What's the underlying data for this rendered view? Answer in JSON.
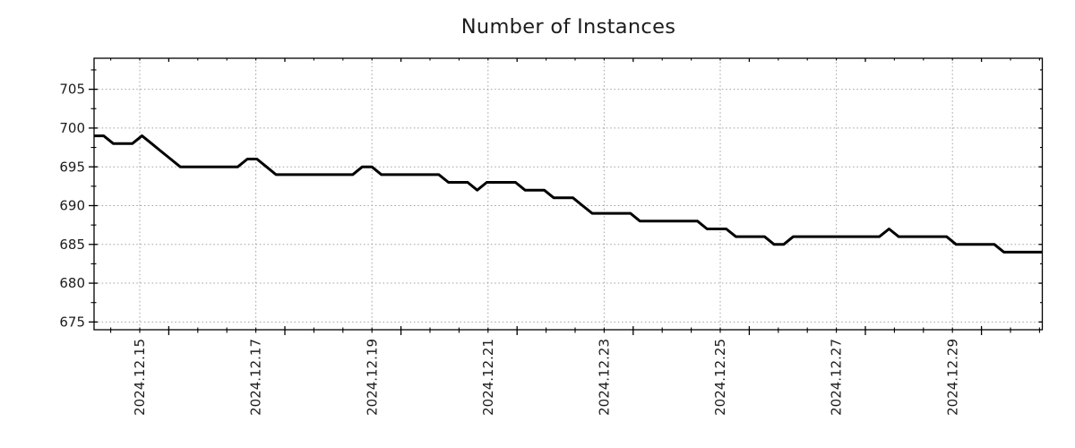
{
  "chart_data": {
    "type": "line",
    "title": "Number of Instances",
    "xlabel": "",
    "ylabel": "",
    "legend_position": "none",
    "grid": "dotted gridlines at major ticks, both axes",
    "y_ticks": [
      675,
      680,
      685,
      690,
      695,
      700,
      705
    ],
    "ylim": [
      674,
      709
    ],
    "x_tick_labels": [
      "2024.12.15",
      "2024.12.17",
      "2024.12.19",
      "2024.12.21",
      "2024.12.23",
      "2024.12.25",
      "2024.12.27",
      "2024.12.29"
    ],
    "x_major_tick_interval_days": 2,
    "x_minor_ticks_per_major_interval": 4,
    "x_data_start": "approx 2024-12-14 05:00",
    "x_data_interval_hours": 4,
    "series": [
      {
        "name": "instances",
        "color": "#000000",
        "values": [
          699,
          699,
          698,
          698,
          698,
          699,
          698,
          697,
          696,
          695,
          695,
          695,
          695,
          695,
          695,
          695,
          696,
          696,
          695,
          694,
          694,
          694,
          694,
          694,
          694,
          694,
          694,
          694,
          695,
          695,
          694,
          694,
          694,
          694,
          694,
          694,
          694,
          693,
          693,
          693,
          692,
          693,
          693,
          693,
          693,
          692,
          692,
          692,
          691,
          691,
          691,
          690,
          689,
          689,
          689,
          689,
          689,
          688,
          688,
          688,
          688,
          688,
          688,
          688,
          687,
          687,
          687,
          686,
          686,
          686,
          686,
          685,
          685,
          686,
          686,
          686,
          686,
          686,
          686,
          686,
          686,
          686,
          686,
          687,
          686,
          686,
          686,
          686,
          686,
          686,
          685,
          685,
          685,
          685,
          685,
          684,
          684,
          684,
          684,
          684
        ]
      }
    ]
  },
  "colors": {
    "line": "#000000",
    "grid": "#a0a0a0",
    "frame": "#000000",
    "text": "#1c1c1c",
    "background": "#ffffff"
  }
}
